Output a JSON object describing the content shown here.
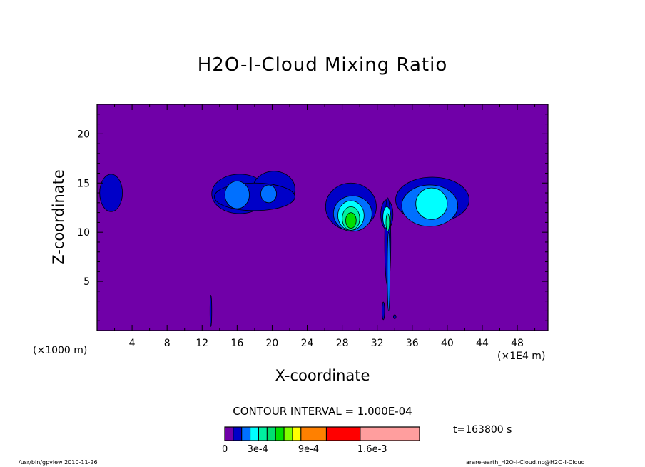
{
  "header": {
    "title": "H2O-I-Cloud Mixing Ratio"
  },
  "chart_data": {
    "type": "heatmap",
    "subtype": "filled-contour",
    "title": "H2O-I-Cloud Mixing Ratio",
    "xlabel": "X-coordinate",
    "ylabel": "Z-coordinate",
    "x_unit_left": "(×1000 m)",
    "x_unit_right": "(×1E4 m)",
    "xlim": [
      0,
      51.5
    ],
    "ylim": [
      0,
      23
    ],
    "x_ticks": [
      4,
      8,
      12,
      16,
      20,
      24,
      28,
      32,
      36,
      40,
      44,
      48
    ],
    "y_ticks": [
      5,
      10,
      15,
      20
    ],
    "grid": false,
    "background_level_color": "#7000a8",
    "contour_interval": "CONTOUR INTERVAL = 1.000E-04",
    "time": "t=163800 s",
    "colorbar": {
      "levels": [
        0,
        0.0001,
        0.0002,
        0.0003,
        0.0004,
        0.0005,
        0.0006,
        0.0007,
        0.0008,
        0.0009,
        0.0012,
        0.0016,
        0.0023
      ],
      "colors": [
        "#7000a8",
        "#0000c8",
        "#0070ff",
        "#00ffff",
        "#00f0a0",
        "#00e070",
        "#00e000",
        "#80ff00",
        "#ffff00",
        "#ff8000",
        "#ff0000",
        "#ff9e9e"
      ],
      "tick_labels": [
        "0",
        "3e-4",
        "9e-4",
        "1.6e-3"
      ]
    },
    "cloud_features": [
      {
        "x_center": 1.6,
        "z_center": 14,
        "max_level": "1e-4",
        "description_key": "left edge"
      },
      {
        "x_center": 18,
        "z_center": 13.8,
        "max_level": "2e-4"
      },
      {
        "x_center": 29,
        "z_center": 12,
        "max_level": "6e-4"
      },
      {
        "x_center": 33.2,
        "z_center": 9,
        "max_level": "4e-4"
      },
      {
        "x_center": 38.5,
        "z_center": 13,
        "max_level": "3e-4"
      }
    ]
  },
  "footer": {
    "left": "/usr/bin/gpview  2010-11-26",
    "right": "arare-earth_H2O-I-Cloud.nc@H2O-I-Cloud"
  }
}
